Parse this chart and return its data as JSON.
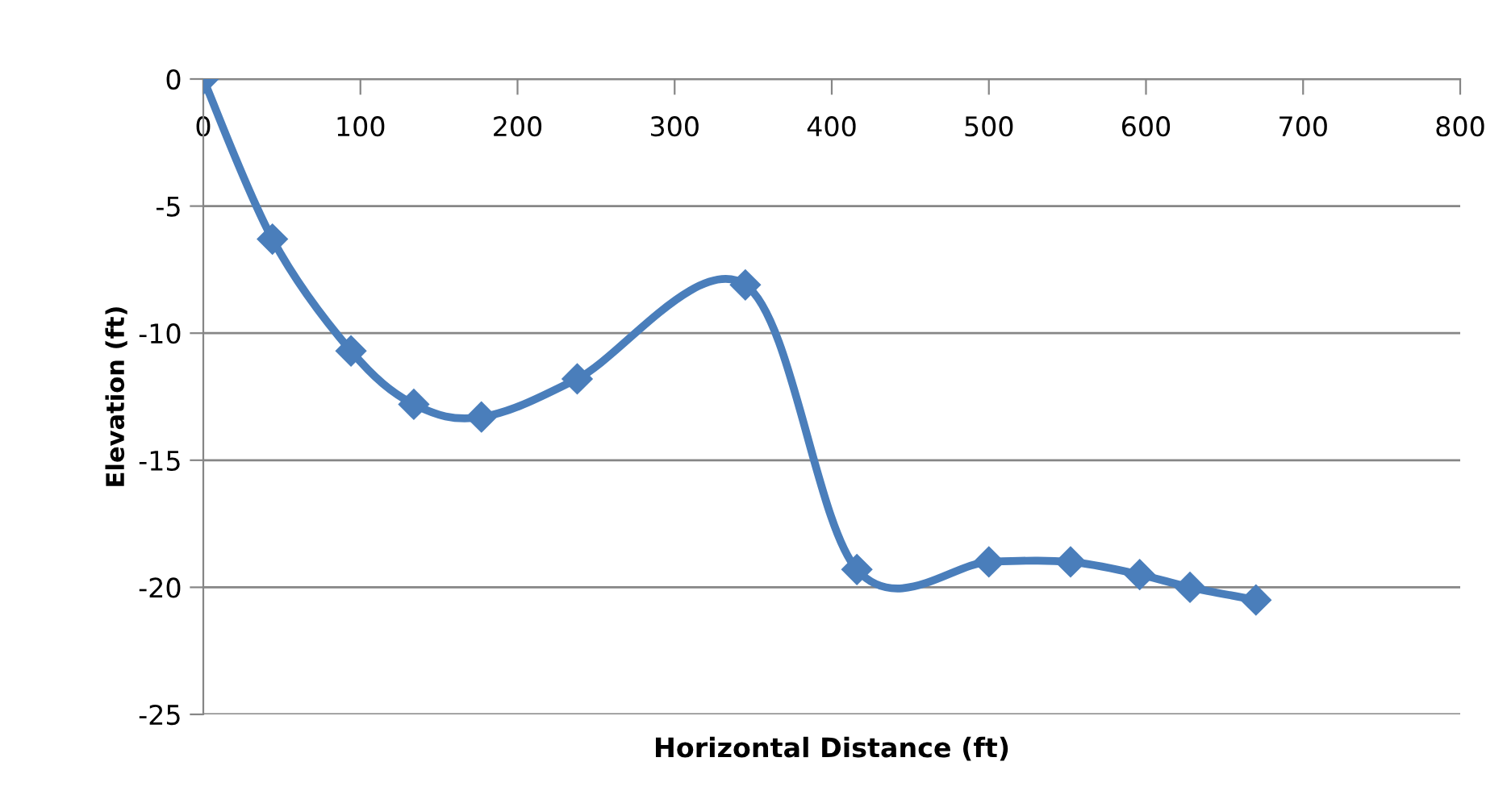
{
  "chart_data": {
    "type": "line",
    "xlabel": "Horizontal Distance (ft)",
    "ylabel": "Elevation (ft)",
    "x": [
      0,
      44,
      94,
      134,
      177,
      238,
      345,
      416,
      500,
      552,
      596,
      628,
      670
    ],
    "series": [
      {
        "color": "#4a7ebb",
        "values": [
          0,
          -6.3,
          -10.7,
          -12.8,
          -13.3,
          -11.8,
          -8.1,
          -19.3,
          -19.0,
          -19.0,
          -19.5,
          -20.0,
          -20.5
        ]
      }
    ],
    "xlim": [
      0,
      800
    ],
    "xticks": [
      0,
      100,
      200,
      300,
      400,
      500,
      600,
      700,
      800
    ],
    "ylim": [
      -25,
      0
    ],
    "yticks": [
      -25,
      -20,
      -15,
      -10,
      -5,
      0
    ],
    "grid": "y",
    "marker": "diamond",
    "line_style": "solid"
  }
}
